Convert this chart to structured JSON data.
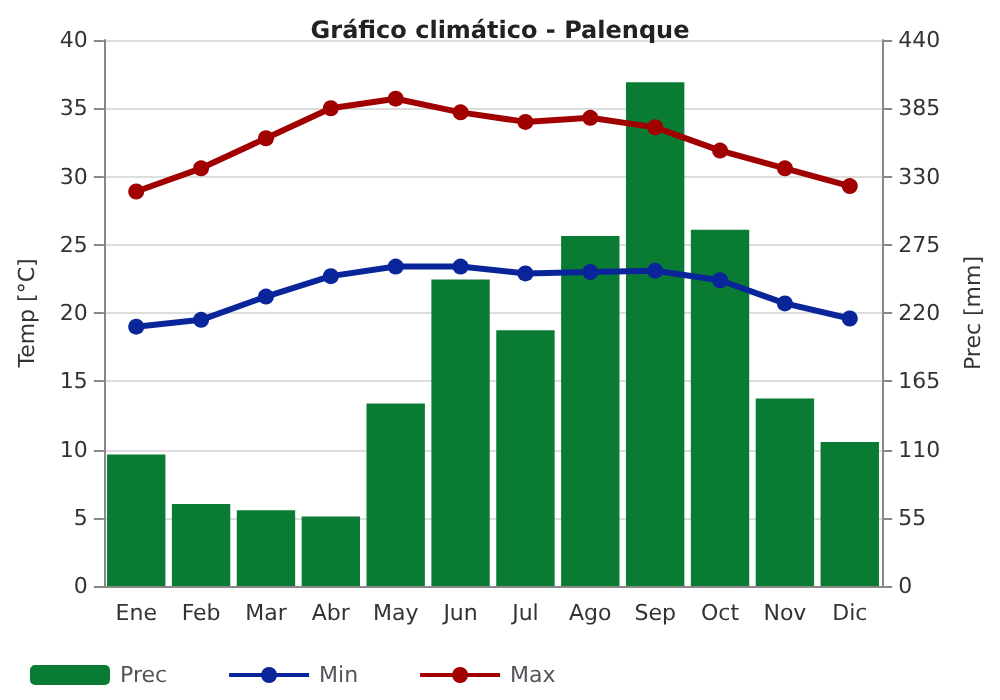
{
  "chart_data": {
    "type": "line",
    "title": "Gráfico climático - Palenque",
    "ylabel": "Temp [°C]",
    "y2label": "Prec [mm]",
    "categories": [
      "Ene",
      "Feb",
      "Mar",
      "Abr",
      "May",
      "Jun",
      "Jul",
      "Ago",
      "Sep",
      "Oct",
      "Nov",
      "Dic"
    ],
    "series": [
      {
        "name": "Prec",
        "type": "bar",
        "axis": "y2",
        "color": "#0a7b32",
        "values": [
          106,
          66,
          61,
          56,
          147,
          247,
          206,
          282,
          406,
          287,
          151,
          116
        ]
      },
      {
        "name": "Min",
        "color": "#0a2599",
        "values": [
          19.0,
          19.5,
          21.2,
          22.7,
          23.4,
          23.4,
          22.9,
          23.0,
          23.1,
          22.4,
          20.7,
          19.6
        ]
      },
      {
        "name": "Max",
        "color": "#a10000",
        "values": [
          28.9,
          30.6,
          32.8,
          35.0,
          35.7,
          34.7,
          34.0,
          34.3,
          33.6,
          31.9,
          30.6,
          29.3
        ]
      }
    ],
    "ylim": [
      0,
      40
    ],
    "yticks": [
      0,
      5,
      10,
      15,
      20,
      25,
      30,
      35,
      40
    ],
    "y2lim": [
      0,
      440
    ],
    "y2ticks": [
      0,
      55,
      110,
      165,
      220,
      275,
      330,
      385,
      440
    ],
    "grid": "y",
    "legend": "bottom",
    "marker": "circle",
    "line_style": "solid"
  }
}
